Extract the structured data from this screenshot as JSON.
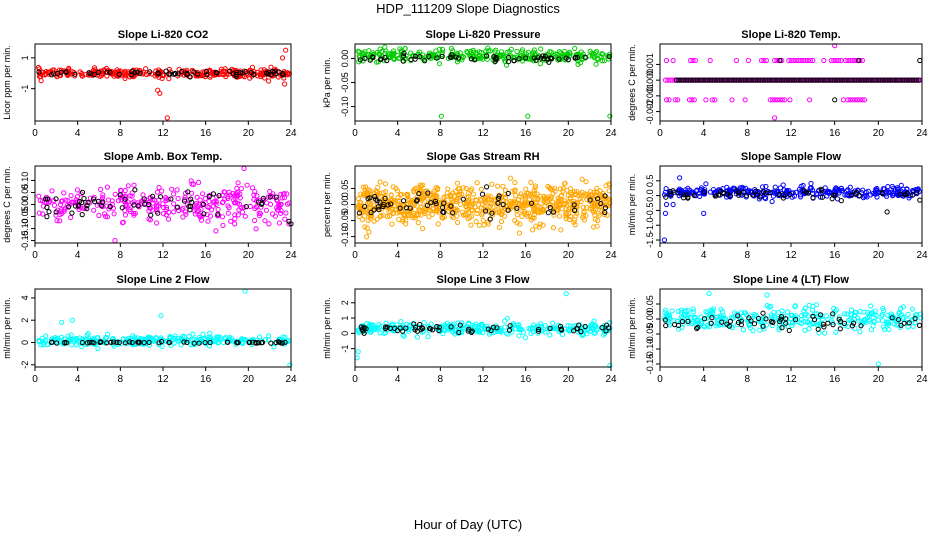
{
  "page": {
    "title": "HDP_111209  Slope Diagnostics",
    "xlabel": "Hour of Day (UTC)"
  },
  "chart_data": [
    {
      "type": "scatter",
      "title": "Slope Li-820 CO2",
      "ylabel": "Licor ppm per min.",
      "xlim": [
        0,
        24
      ],
      "ylim": [
        -3.1,
        1.9
      ],
      "xticks": [
        0,
        4,
        8,
        12,
        16,
        20,
        24
      ],
      "yticks": [
        -1,
        1
      ],
      "ytick_labels": [
        "-1",
        "1"
      ],
      "grid": false,
      "series": [
        {
          "color": "#ff0000",
          "center": 0.0,
          "spread": 0.25,
          "count": 300,
          "outliers": [
            [
              11.5,
              -1.1
            ],
            [
              11.7,
              -1.3
            ],
            [
              12.4,
              -2.9
            ],
            [
              23.5,
              1.5
            ],
            [
              23.4,
              -0.7
            ],
            [
              21.9,
              -0.5
            ],
            [
              23.2,
              1.0
            ]
          ]
        },
        {
          "color": "#000000",
          "center": 0.0,
          "spread": 0.15,
          "count": 60,
          "outliers": []
        }
      ]
    },
    {
      "type": "scatter",
      "title": "Slope Li-820 Pressure",
      "ylabel": "kPa per min.",
      "xlim": [
        0,
        24
      ],
      "ylim": [
        -0.13,
        0.03
      ],
      "xticks": [
        0,
        4,
        8,
        12,
        16,
        20,
        24
      ],
      "yticks": [
        0.0,
        -0.05,
        -0.1
      ],
      "ytick_labels": [
        "0.00",
        "-0.05",
        "-0.10"
      ],
      "grid": false,
      "series": [
        {
          "color": "#00cc00",
          "center": 0.005,
          "spread": 0.012,
          "count": 300,
          "outliers": [
            [
              8.1,
              -0.12
            ],
            [
              16.2,
              -0.12
            ],
            [
              23.9,
              -0.12
            ],
            [
              4.2,
              0.02
            ],
            [
              0.3,
              0.015
            ],
            [
              12.5,
              0.016
            ]
          ]
        },
        {
          "color": "#000000",
          "center": 0.0,
          "spread": 0.006,
          "count": 60,
          "outliers": []
        }
      ]
    },
    {
      "type": "scatter",
      "title": "Slope Li-820 Temp.",
      "ylabel": "degrees C per min.",
      "xlim": [
        0,
        24
      ],
      "ylim": [
        -0.0026,
        0.0023
      ],
      "xticks": [
        0,
        4,
        8,
        12,
        16,
        20,
        24
      ],
      "yticks": [
        0.001,
        0.0,
        -0.001,
        -0.002
      ],
      "ytick_labels": [
        "0.001",
        "0.000",
        "-0.001",
        "-0.002"
      ],
      "grid": false,
      "discrete": [
        -0.00125,
        0.0,
        0.00125
      ],
      "series": [
        {
          "color": "#ff00ff",
          "center": 0.0,
          "spread": 0.0,
          "count": 0,
          "levels": [
            {
              "y": 0.00125,
              "ranges": [
                [
                  0.6,
                  0.8
                ],
                [
                  1.2,
                  1.4
                ],
                [
                  2.8,
                  3.3
                ],
                [
                  4.6,
                  4.8
                ],
                [
                  7.0,
                  7.2
                ],
                [
                  8.1,
                  8.3
                ],
                [
                  9.3,
                  9.8
                ],
                [
                  10.5,
                  11.3
                ],
                [
                  11.8,
                  14.2
                ],
                [
                  15.0,
                  15.2
                ],
                [
                  15.7,
                  16.6
                ],
                [
                  17.0,
                  18.0
                ],
                [
                  18.1,
                  18.6
                ]
              ]
            },
            {
              "y": -0.00125,
              "ranges": [
                [
                  0.6,
                  0.9
                ],
                [
                  1.4,
                  1.8
                ],
                [
                  2.7,
                  3.2
                ],
                [
                  4.2,
                  4.4
                ],
                [
                  4.8,
                  5.2
                ],
                [
                  6.6,
                  6.8
                ],
                [
                  7.8,
                  8.0
                ],
                [
                  10.1,
                  11.5
                ],
                [
                  11.9,
                  12.1
                ],
                [
                  13.7,
                  13.9
                ],
                [
                  16.8,
                  16.9
                ],
                [
                  17.2,
                  18.8
                ]
              ]
            },
            {
              "y": 0.0,
              "ranges": [
                [
                  0.5,
                  24.0
                ]
              ]
            }
          ],
          "outliers": [
            [
              16.0,
              0.0022
            ],
            [
              10.5,
              -0.0024
            ],
            [
              16.2,
              0.0
            ]
          ]
        },
        {
          "color": "#000000",
          "center": 0.0,
          "spread": 0.0,
          "count": 0,
          "levels": [
            {
              "y": 0.0,
              "ranges": [
                [
                  1.5,
                  23.9
                ]
              ]
            }
          ],
          "outliers": [
            [
              11.0,
              0.00125
            ],
            [
              18.2,
              0.00125
            ],
            [
              23.8,
              0.00125
            ],
            [
              16.0,
              -0.00125
            ]
          ]
        }
      ]
    },
    {
      "type": "scatter",
      "title": "Slope Amb. Box Temp.",
      "ylabel": "degrees C per min.",
      "xlim": [
        0,
        24
      ],
      "ylim": [
        -0.16,
        0.16
      ],
      "xticks": [
        0,
        4,
        8,
        12,
        16,
        20,
        24
      ],
      "yticks": [
        0.1,
        0.05,
        0.0,
        -0.05,
        -0.1,
        -0.15
      ],
      "ytick_labels": [
        "0.10",
        "0.05",
        "0.00",
        "-0.05",
        "-0.10",
        "-0.15"
      ],
      "grid": false,
      "series": [
        {
          "color": "#ff00ff",
          "center": 0.0,
          "spread": 0.07,
          "count": 320,
          "outliers": [
            [
              7.5,
              -0.15
            ],
            [
              19.6,
              0.15
            ]
          ]
        },
        {
          "color": "#000000",
          "center": 0.0,
          "spread": 0.05,
          "count": 60,
          "outliers": [
            [
              24.0,
              -0.08
            ],
            [
              23.8,
              -0.07
            ]
          ]
        }
      ]
    },
    {
      "type": "scatter",
      "title": "Slope Gas Stream RH",
      "ylabel": "percent per min.",
      "xlim": [
        0,
        24
      ],
      "ylim": [
        -0.12,
        0.12
      ],
      "xticks": [
        0,
        4,
        8,
        12,
        16,
        20,
        24
      ],
      "yticks": [
        0.05,
        0.0,
        -0.05,
        -0.1
      ],
      "ytick_labels": [
        "0.05",
        "0.00",
        "-0.05",
        "-0.10"
      ],
      "grid": false,
      "series": [
        {
          "color": "#ffa500",
          "center": 0.0,
          "spread": 0.055,
          "count": 700,
          "outliers": []
        },
        {
          "color": "#000000",
          "center": 0.0,
          "spread": 0.04,
          "count": 60,
          "outliers": []
        }
      ]
    },
    {
      "type": "scatter",
      "title": "Slope Sample Flow",
      "ylabel": "ml/min per min.",
      "xlim": [
        0,
        24
      ],
      "ylim": [
        -1.6,
        1.0
      ],
      "xticks": [
        0,
        4,
        8,
        12,
        16,
        20,
        24
      ],
      "yticks": [
        0.5,
        0.0,
        -0.5,
        -1.0,
        -1.5
      ],
      "ytick_labels": [
        "0.5",
        "0.0",
        "-0.5",
        "-1.0",
        "-1.5"
      ],
      "grid": false,
      "series": [
        {
          "color": "#0000ff",
          "center": 0.1,
          "spread": 0.18,
          "count": 300,
          "outliers": [
            [
              0.4,
              -1.5
            ],
            [
              0.5,
              -0.6
            ],
            [
              0.6,
              -0.3
            ],
            [
              1.2,
              -0.3
            ],
            [
              4.0,
              -0.6
            ],
            [
              1.8,
              0.6
            ],
            [
              4.2,
              0.4
            ]
          ]
        },
        {
          "color": "#000000",
          "center": 0.05,
          "spread": 0.12,
          "count": 60,
          "outliers": [
            [
              20.8,
              -0.55
            ],
            [
              23.8,
              -0.15
            ]
          ]
        }
      ]
    },
    {
      "type": "scatter",
      "title": "Slope Line 2 Flow",
      "ylabel": "ml/min per min.",
      "xlim": [
        0,
        24
      ],
      "ylim": [
        -2.2,
        4.8
      ],
      "xticks": [
        0,
        4,
        8,
        12,
        16,
        20,
        24
      ],
      "yticks": [
        4,
        2,
        0,
        -2
      ],
      "ytick_labels": [
        "4",
        "2",
        "0",
        "-2"
      ],
      "grid": false,
      "series": [
        {
          "color": "#00ffff",
          "center": 0.2,
          "spread": 0.4,
          "count": 300,
          "outliers": [
            [
              19.7,
              4.6
            ],
            [
              11.8,
              2.4
            ],
            [
              23.9,
              -2.0
            ],
            [
              3.5,
              2.0
            ],
            [
              2.5,
              1.8
            ]
          ]
        },
        {
          "color": "#000000",
          "center": 0.0,
          "spread": 0.08,
          "count": 60,
          "outliers": []
        }
      ]
    },
    {
      "type": "scatter",
      "title": "Slope Line 3 Flow",
      "ylabel": "ml/min per min.",
      "xlim": [
        0,
        24
      ],
      "ylim": [
        -2.2,
        2.9
      ],
      "xticks": [
        0,
        4,
        8,
        12,
        16,
        20,
        24
      ],
      "yticks": [
        2,
        1,
        0,
        -1
      ],
      "ytick_labels": [
        "2",
        "1",
        "0",
        "-1"
      ],
      "grid": false,
      "series": [
        {
          "color": "#00ffff",
          "center": 0.3,
          "spread": 0.35,
          "count": 300,
          "outliers": [
            [
              19.8,
              2.6
            ],
            [
              0.2,
              -1.6
            ],
            [
              23.9,
              -2.1
            ],
            [
              0.3,
              -1.2
            ]
          ]
        },
        {
          "color": "#000000",
          "center": 0.3,
          "spread": 0.25,
          "count": 60,
          "outliers": []
        }
      ]
    },
    {
      "type": "scatter",
      "title": "Slope Line 4 (LT) Flow",
      "ylabel": "ml/min per min.",
      "xlim": [
        0,
        24
      ],
      "ylim": [
        -0.16,
        0.1
      ],
      "xticks": [
        0,
        4,
        8,
        12,
        16,
        20,
        24
      ],
      "yticks": [
        0.05,
        0.0,
        -0.05,
        -0.1,
        -0.15
      ],
      "ytick_labels": [
        "0.05",
        "0.00",
        "-0.05",
        "-0.10",
        "-0.15"
      ],
      "grid": false,
      "series": [
        {
          "color": "#00ffff",
          "center": 0.0,
          "spread": 0.035,
          "count": 320,
          "outliers": [
            [
              20.0,
              -0.15
            ],
            [
              4.5,
              0.085
            ],
            [
              9.8,
              0.08
            ]
          ]
        },
        {
          "color": "#000000",
          "center": -0.01,
          "spread": 0.03,
          "count": 60,
          "outliers": []
        }
      ]
    }
  ]
}
